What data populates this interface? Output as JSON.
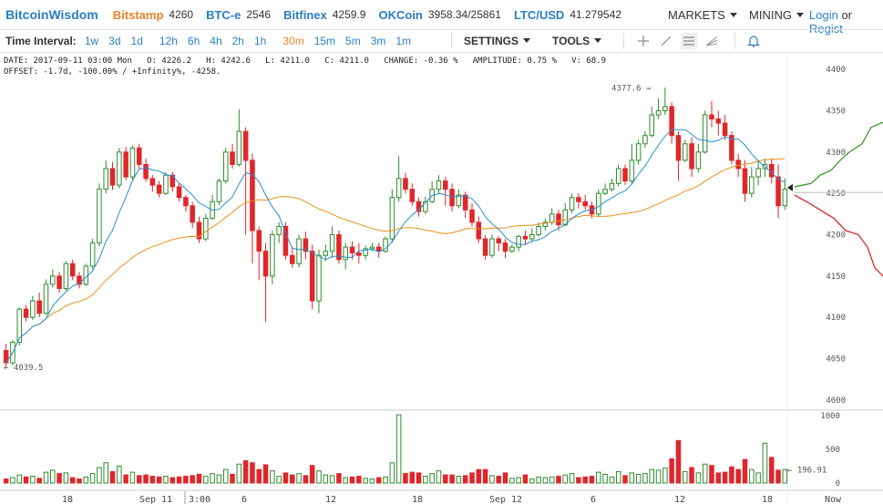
{
  "header": {
    "brand": "BitcoinWisdom",
    "markets": [
      {
        "name": "Bitstamp",
        "price": "4260",
        "color": "#e8822a"
      },
      {
        "name": "BTC-e",
        "price": "2546",
        "color": "#2a7fc4"
      },
      {
        "name": "Bitfinex",
        "price": "4259.9",
        "color": "#2a7fc4"
      },
      {
        "name": "OKCoin",
        "price": "3958.34/25861",
        "color": "#2a7fc4"
      },
      {
        "name": "LTC/USD",
        "price": "41.279542",
        "color": "#2a7fc4"
      }
    ],
    "markets_menu": "MARKETS",
    "mining_menu": "MINING",
    "login": "Login",
    "or": "or",
    "register": "Regist"
  },
  "toolbar": {
    "label": "Time Interval:",
    "intervals": [
      "1w",
      "3d",
      "1d",
      "12h",
      "6h",
      "4h",
      "2h",
      "1h",
      "30m",
      "15m",
      "5m",
      "3m",
      "1m"
    ],
    "active_interval": "30m",
    "settings": "SETTINGS",
    "tools": "TOOLS",
    "icons": [
      "crosshair-icon",
      "line-tool-icon",
      "hamburger-icon",
      "fan-tool-icon",
      "bell-icon"
    ]
  },
  "info": {
    "line1": "DATE: 2017-09-11 03:00 Mon   O: 4226.2   H: 4242.6   L: 4211.0   C: 4211.0   CHANGE: -0.36 %   AMPLITUDE: 0.75 %   V: 68.9",
    "line2": "OFFSET: -1.7d, -100.00% / +Infinity%, -4258."
  },
  "chart_data": {
    "type": "candlestick",
    "price_axis": [
      "4400",
      "4350",
      "4300",
      "4250",
      "4200",
      "4150",
      "4100",
      "4050",
      "4000"
    ],
    "volume_axis": [
      "1000",
      "500",
      "0"
    ],
    "x_labels": [
      "18",
      "Sep 11",
      "3:00",
      "6",
      "12",
      "18",
      "Sep 12",
      "6",
      "12",
      "18",
      "Now"
    ],
    "high_annotation": "4377.6",
    "low_annotation": "← 4039.5",
    "last_volume": "← 196.91",
    "colors": {
      "up": "#2e8b2e",
      "down": "#e0262a",
      "ma_fast": "#2a8fd0",
      "ma_slow": "#e8921a",
      "depth_bid": "#3a9a2a",
      "depth_ask": "#d9262a",
      "last": "#cccccc"
    },
    "candles": [
      [
        4060,
        4045,
        4068,
        4040,
        60
      ],
      [
        4045,
        4070,
        4072,
        4042,
        80
      ],
      [
        4070,
        4110,
        4112,
        4066,
        120
      ],
      [
        4110,
        4100,
        4115,
        4095,
        90
      ],
      [
        4100,
        4120,
        4126,
        4097,
        100
      ],
      [
        4120,
        4105,
        4130,
        4100,
        70
      ],
      [
        4105,
        4140,
        4146,
        4103,
        160
      ],
      [
        4140,
        4150,
        4158,
        4136,
        190
      ],
      [
        4150,
        4135,
        4155,
        4130,
        140
      ],
      [
        4135,
        4165,
        4168,
        4132,
        150
      ],
      [
        4165,
        4150,
        4170,
        4145,
        80
      ],
      [
        4150,
        4140,
        4155,
        4135,
        60
      ],
      [
        4140,
        4162,
        4165,
        4138,
        90
      ],
      [
        4162,
        4190,
        4195,
        4158,
        140
      ],
      [
        4190,
        4255,
        4262,
        4186,
        230
      ],
      [
        4255,
        4280,
        4290,
        4250,
        300
      ],
      [
        4280,
        4260,
        4288,
        4254,
        170
      ],
      [
        4260,
        4300,
        4305,
        4256,
        250
      ],
      [
        4300,
        4270,
        4306,
        4266,
        120
      ],
      [
        4270,
        4305,
        4308,
        4265,
        160
      ],
      [
        4305,
        4285,
        4310,
        4280,
        110
      ],
      [
        4285,
        4268,
        4292,
        4264,
        120
      ],
      [
        4268,
        4260,
        4272,
        4252,
        100
      ],
      [
        4260,
        4250,
        4265,
        4245,
        90
      ],
      [
        4250,
        4272,
        4276,
        4248,
        100
      ],
      [
        4272,
        4258,
        4276,
        4252,
        80
      ],
      [
        4258,
        4245,
        4262,
        4240,
        90
      ],
      [
        4245,
        4235,
        4248,
        4228,
        100
      ],
      [
        4235,
        4215,
        4240,
        4208,
        110
      ],
      [
        4215,
        4195,
        4222,
        4190,
        130
      ],
      [
        4195,
        4220,
        4225,
        4192,
        100
      ],
      [
        4220,
        4240,
        4248,
        4218,
        140
      ],
      [
        4240,
        4265,
        4268,
        4236,
        120
      ],
      [
        4265,
        4300,
        4305,
        4262,
        200
      ],
      [
        4300,
        4285,
        4310,
        4280,
        130
      ],
      [
        4285,
        4325,
        4352,
        4282,
        280
      ],
      [
        4325,
        4290,
        4330,
        4200,
        330
      ],
      [
        4290,
        4205,
        4298,
        4165,
        300
      ],
      [
        4205,
        4180,
        4210,
        4145,
        200
      ],
      [
        4180,
        4150,
        4190,
        4095,
        270
      ],
      [
        4150,
        4200,
        4205,
        4140,
        180
      ],
      [
        4200,
        4210,
        4215,
        4190,
        100
      ],
      [
        4210,
        4175,
        4215,
        4170,
        150
      ],
      [
        4175,
        4165,
        4185,
        4160,
        120
      ],
      [
        4165,
        4195,
        4200,
        4160,
        140
      ],
      [
        4195,
        4180,
        4204,
        4170,
        110
      ],
      [
        4180,
        4120,
        4188,
        4110,
        260
      ],
      [
        4120,
        4175,
        4182,
        4105,
        180
      ],
      [
        4175,
        4180,
        4188,
        4168,
        120
      ],
      [
        4180,
        4200,
        4210,
        4172,
        110
      ],
      [
        4200,
        4170,
        4205,
        4165,
        140
      ],
      [
        4170,
        4185,
        4190,
        4158,
        80
      ],
      [
        4185,
        4178,
        4192,
        4170,
        90
      ],
      [
        4178,
        4175,
        4190,
        4165,
        100
      ],
      [
        4175,
        4183,
        4187,
        4170,
        70
      ],
      [
        4183,
        4185,
        4190,
        4180,
        60
      ],
      [
        4185,
        4180,
        4190,
        4172,
        80
      ],
      [
        4180,
        4195,
        4198,
        4178,
        90
      ],
      [
        4195,
        4245,
        4255,
        4190,
        300
      ],
      [
        4245,
        4268,
        4295,
        4240,
        1010
      ],
      [
        4268,
        4255,
        4275,
        4250,
        140
      ],
      [
        4255,
        4240,
        4262,
        4235,
        160
      ],
      [
        4240,
        4228,
        4245,
        4222,
        150
      ],
      [
        4228,
        4240,
        4246,
        4225,
        100
      ],
      [
        4240,
        4255,
        4265,
        4238,
        140
      ],
      [
        4255,
        4265,
        4272,
        4250,
        180
      ],
      [
        4265,
        4255,
        4270,
        4235,
        120
      ],
      [
        4255,
        4235,
        4262,
        4228,
        120
      ],
      [
        4235,
        4248,
        4255,
        4232,
        100
      ],
      [
        4248,
        4230,
        4252,
        4220,
        110
      ],
      [
        4230,
        4215,
        4238,
        4210,
        150
      ],
      [
        4215,
        4195,
        4222,
        4190,
        200
      ],
      [
        4195,
        4175,
        4200,
        4170,
        200
      ],
      [
        4175,
        4195,
        4200,
        4172,
        110
      ],
      [
        4195,
        4190,
        4198,
        4180,
        100
      ],
      [
        4190,
        4180,
        4195,
        4172,
        150
      ],
      [
        4180,
        4185,
        4188,
        4178,
        70
      ],
      [
        4185,
        4198,
        4200,
        4180,
        80
      ],
      [
        4198,
        4195,
        4205,
        4188,
        120
      ],
      [
        4195,
        4200,
        4208,
        4192,
        60
      ],
      [
        4200,
        4210,
        4215,
        4198,
        90
      ],
      [
        4210,
        4215,
        4220,
        4205,
        80
      ],
      [
        4215,
        4225,
        4232,
        4212,
        90
      ],
      [
        4225,
        4212,
        4230,
        4205,
        100
      ],
      [
        4212,
        4230,
        4238,
        4210,
        120
      ],
      [
        4230,
        4245,
        4250,
        4226,
        140
      ],
      [
        4245,
        4240,
        4250,
        4232,
        80
      ],
      [
        4240,
        4235,
        4248,
        4230,
        90
      ],
      [
        4235,
        4225,
        4240,
        4220,
        100
      ],
      [
        4225,
        4250,
        4255,
        4222,
        160
      ],
      [
        4250,
        4255,
        4262,
        4248,
        130
      ],
      [
        4255,
        4262,
        4268,
        4252,
        90
      ],
      [
        4262,
        4280,
        4285,
        4258,
        170
      ],
      [
        4280,
        4265,
        4285,
        4260,
        110
      ],
      [
        4265,
        4290,
        4310,
        4262,
        150
      ],
      [
        4290,
        4310,
        4315,
        4285,
        130
      ],
      [
        4310,
        4320,
        4325,
        4305,
        140
      ],
      [
        4320,
        4345,
        4355,
        4318,
        200
      ],
      [
        4345,
        4350,
        4365,
        4340,
        190
      ],
      [
        4350,
        4355,
        4378,
        4345,
        220
      ],
      [
        4355,
        4320,
        4360,
        4310,
        360
      ],
      [
        4320,
        4290,
        4325,
        4265,
        630
      ],
      [
        4290,
        4310,
        4315,
        4288,
        170
      ],
      [
        4310,
        4280,
        4318,
        4270,
        230
      ],
      [
        4280,
        4300,
        4310,
        4275,
        150
      ],
      [
        4300,
        4345,
        4350,
        4298,
        280
      ],
      [
        4345,
        4340,
        4362,
        4330,
        260
      ],
      [
        4340,
        4335,
        4350,
        4320,
        150
      ],
      [
        4335,
        4320,
        4345,
        4315,
        160
      ],
      [
        4320,
        4290,
        4325,
        4285,
        240
      ],
      [
        4290,
        4280,
        4298,
        4270,
        200
      ],
      [
        4280,
        4250,
        4290,
        4240,
        350
      ],
      [
        4250,
        4270,
        4282,
        4245,
        200
      ],
      [
        4270,
        4280,
        4290,
        4260,
        150
      ],
      [
        4280,
        4285,
        4292,
        4270,
        590
      ],
      [
        4285,
        4270,
        4292,
        4262,
        380
      ],
      [
        4270,
        4235,
        4285,
        4220,
        190
      ],
      [
        4235,
        4255,
        4268,
        4230,
        200
      ]
    ]
  }
}
